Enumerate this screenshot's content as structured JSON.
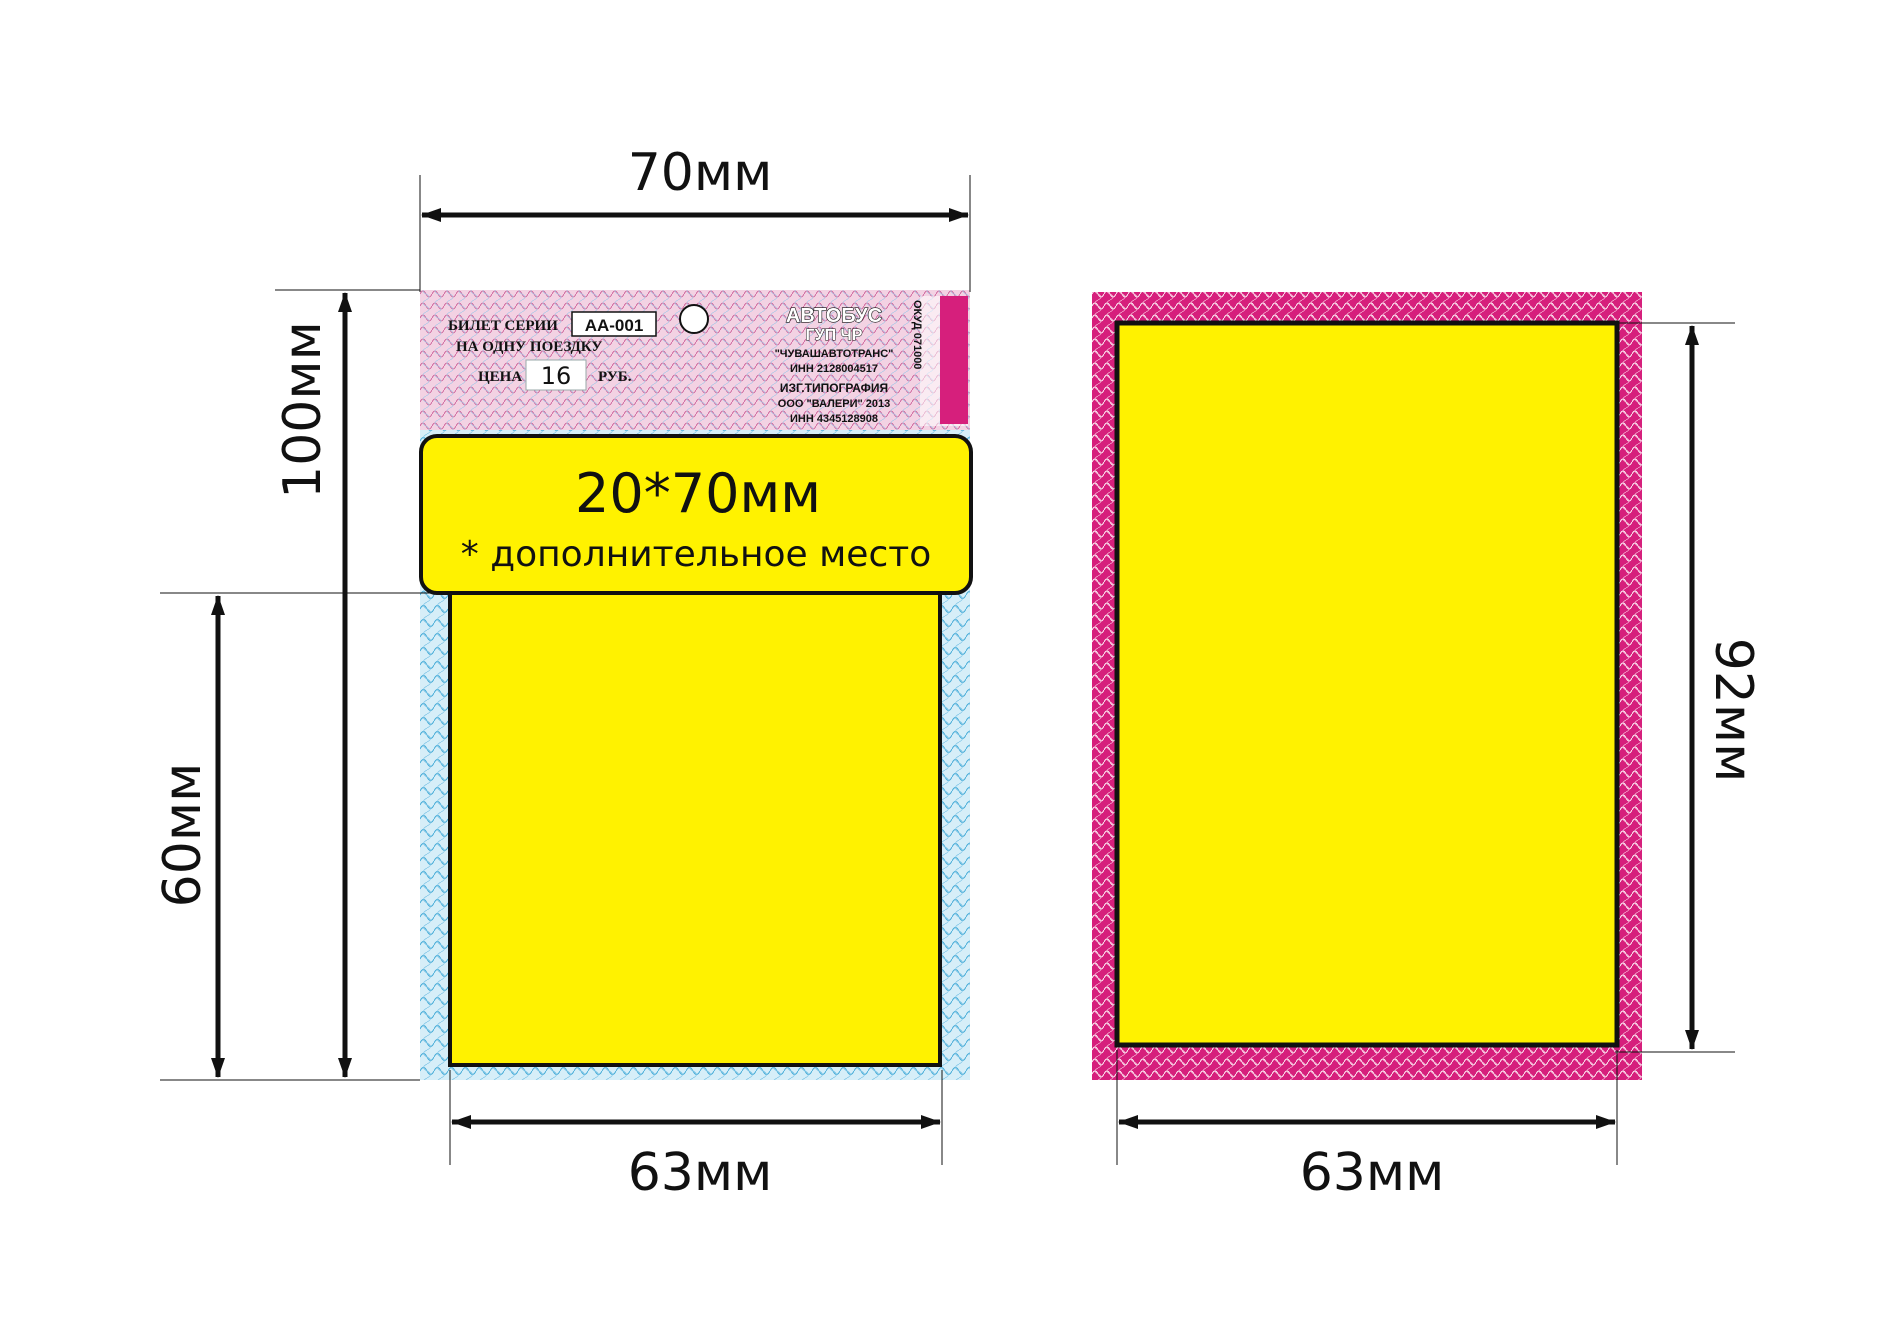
{
  "dimensions": {
    "top_width": "70мм",
    "left_height": "100мм",
    "inner_height": "60мм",
    "left_bottom_width": "63мм",
    "right_height": "92мм",
    "right_bottom_width": "63мм"
  },
  "ad_box": {
    "size": "20*70мм",
    "note": "* дополнительное место"
  },
  "ticket": {
    "series_label": "БИЛЕТ СЕРИИ",
    "series_value": "АА-001",
    "trip_label": "НА ОДНУ ПОЕЗДКУ",
    "price_label": "ЦЕНА",
    "price_value": "16",
    "price_unit": "РУБ.",
    "transport": "АВТОБУС",
    "operator": "ГУП ЧР",
    "company": "\"ЧУВАШАВТОТРАНС\"",
    "company_inn": "ИНН 2128004517",
    "printer_label": "ИЗГ.ТИПОГРАФИЯ",
    "printer_name": "ООО \"ВАЛЕРИ\" 2013",
    "printer_inn": "ИНН 4345128908",
    "okud": "ОКУД 071000"
  },
  "colors": {
    "yellow": "#FFF200",
    "pink_frame": "#D61F7C",
    "blue_guilloche": "#3FA9D6",
    "outline": "#111111"
  }
}
